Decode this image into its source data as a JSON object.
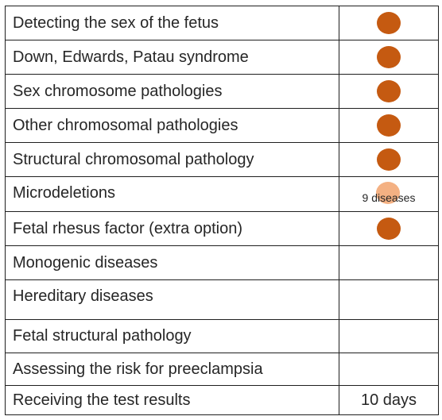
{
  "colors": {
    "dot": "#c55a11",
    "dot_light": "#f4b183"
  },
  "rows": [
    {
      "label": "Detecting the sex of the fetus",
      "value_type": "dot"
    },
    {
      "label": "Down, Edwards, Patau syndrome",
      "value_type": "dot"
    },
    {
      "label": "Sex chromosome pathologies",
      "value_type": "dot"
    },
    {
      "label": "Other chromosomal pathologies",
      "value_type": "dot"
    },
    {
      "label": "Structural chromosomal pathology",
      "value_type": "dot"
    },
    {
      "label": "Microdeletions",
      "value_type": "light-dot-text",
      "value": "9 diseases"
    },
    {
      "label": "Fetal rhesus factor (extra option)",
      "value_type": "dot"
    },
    {
      "label": "Monogenic diseases",
      "value_type": "empty"
    },
    {
      "label": "Hereditary diseases",
      "value_type": "empty"
    },
    {
      "label": "Fetal structural pathology",
      "value_type": "empty"
    },
    {
      "label": "Assessing the risk for preeclampsia",
      "value_type": "empty"
    },
    {
      "label": "Receiving the test results",
      "value_type": "text",
      "value": "10 days"
    }
  ]
}
